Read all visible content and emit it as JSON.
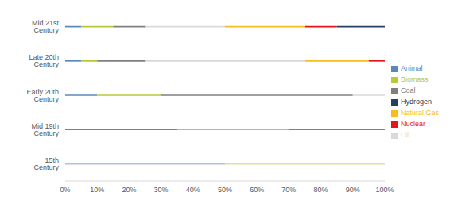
{
  "chart_data": {
    "type": "bar",
    "orientation": "horizontal",
    "stacked": true,
    "grid": false,
    "legend": "right",
    "categories": [
      "Mid 21st Century",
      "Late 20th Century",
      "Early 20th Century",
      "Mid 19th Century",
      "15th Century"
    ],
    "series": [
      {
        "name": "Animal",
        "color": "#5b88b8",
        "values": [
          5,
          5,
          10,
          35,
          50
        ]
      },
      {
        "name": "Biomass",
        "color": "#b8c837",
        "values": [
          10,
          5,
          20,
          35,
          50
        ]
      },
      {
        "name": "Coal",
        "color": "#7f7f7f",
        "values": [
          10,
          15,
          60,
          30,
          0
        ]
      },
      {
        "name": "Oil",
        "color": "#d9d9d9",
        "values": [
          25,
          50,
          10,
          0,
          0
        ]
      },
      {
        "name": "Natural Gas",
        "color": "#f7bc1e",
        "values": [
          25,
          20,
          0,
          0,
          0
        ]
      },
      {
        "name": "Nuclear",
        "color": "#e8141c",
        "values": [
          10,
          5,
          0,
          0,
          0
        ]
      },
      {
        "name": "Hydrogen",
        "color": "#22405f",
        "values": [
          15,
          0,
          0,
          0,
          0
        ]
      }
    ],
    "xlim": [
      0,
      100
    ],
    "xticks": [
      {
        "value": 0,
        "label": "0%"
      },
      {
        "value": 10,
        "label": "10%"
      },
      {
        "value": 20,
        "label": "20%"
      },
      {
        "value": 30,
        "label": "30%"
      },
      {
        "value": 40,
        "label": "40%"
      },
      {
        "value": 50,
        "label": "50%"
      },
      {
        "value": 60,
        "label": "60%"
      },
      {
        "value": 70,
        "label": "70%"
      },
      {
        "value": 80,
        "label": "80%"
      },
      {
        "value": 90,
        "label": "90%"
      },
      {
        "value": 100,
        "label": "100%"
      }
    ]
  }
}
